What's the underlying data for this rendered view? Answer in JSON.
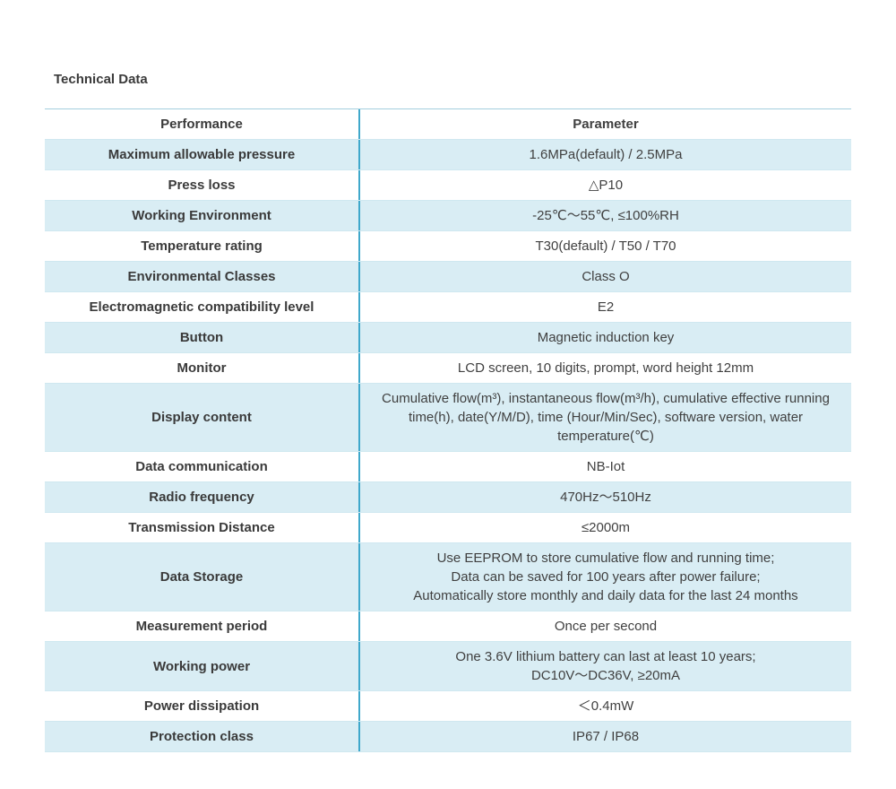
{
  "page": {
    "title": "Technical Data"
  },
  "table": {
    "header": {
      "col1": "Performance",
      "col2": "Parameter"
    },
    "rows": [
      {
        "label": "Maximum allowable pressure",
        "value": "1.6MPa(default) / 2.5MPa",
        "shaded": true
      },
      {
        "label": "Press loss",
        "value": "△P10",
        "shaded": false
      },
      {
        "label": "Working Environment",
        "value": "-25℃～55℃, ≤100%RH",
        "shaded": true
      },
      {
        "label": "Temperature rating",
        "value": "T30(default) / T50 / T70",
        "shaded": false
      },
      {
        "label": "Environmental Classes",
        "value": "Class O",
        "shaded": true
      },
      {
        "label": "Electromagnetic compatibility level",
        "value": "E2",
        "shaded": false
      },
      {
        "label": "Button",
        "value": "Magnetic induction key",
        "shaded": true
      },
      {
        "label": "Monitor",
        "value": "LCD screen, 10 digits, prompt, word height 12mm",
        "shaded": false
      },
      {
        "label": "Display content",
        "value": "Cumulative flow(m³), instantaneous flow(m³/h), cumulative effective running time(h), date(Y/M/D), time (Hour/Min/Sec), software version, water temperature(℃)",
        "shaded": true
      },
      {
        "label": "Data communication",
        "value": "NB-Iot",
        "shaded": false
      },
      {
        "label": "Radio frequency",
        "value": "470Hz～510Hz",
        "shaded": true
      },
      {
        "label": "Transmission Distance",
        "value": "≤2000m",
        "shaded": false
      },
      {
        "label": "Data Storage",
        "value": "Use EEPROM to store cumulative flow and running time;\nData can be saved for 100 years after power failure;\nAutomatically store monthly and daily data for the last 24 months",
        "shaded": true
      },
      {
        "label": "Measurement period",
        "value": "Once per second",
        "shaded": false
      },
      {
        "label": "Working power",
        "value": "One 3.6V lithium battery can last at least 10 years;\nDC10V～DC36V, ≥20mA",
        "shaded": true
      },
      {
        "label": "Power dissipation",
        "value": "＜0.4mW",
        "shaded": false
      },
      {
        "label": "Protection class",
        "value": "IP67 / IP68",
        "shaded": true
      }
    ],
    "colors": {
      "row_shaded": "#d9edf4",
      "divider": "#3fa8cb",
      "row_border": "#cfe8f0",
      "top_border": "#a3cede",
      "text": "#404040",
      "text_dark": "#3a3a3a"
    }
  }
}
